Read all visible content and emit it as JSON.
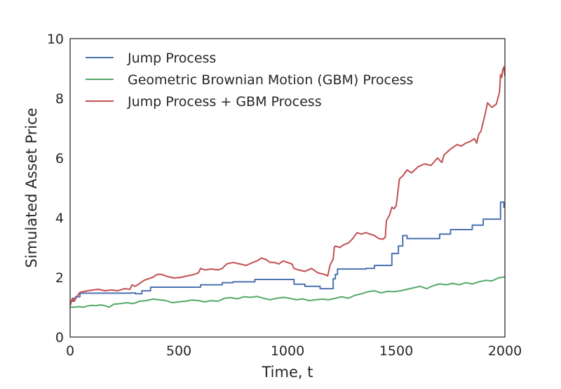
{
  "chart_data": {
    "type": "line",
    "title": "",
    "xlabel": "Time, t",
    "ylabel": "Simulated Asset Price",
    "xlim": [
      0,
      2000
    ],
    "ylim": [
      0,
      10
    ],
    "xticks": [
      "0",
      "500",
      "1000",
      "1500",
      "2000"
    ],
    "yticks": [
      "0",
      "2",
      "4",
      "6",
      "8",
      "10"
    ],
    "grid": false,
    "legend_position": "top-left",
    "series": [
      {
        "name": "Jump Process",
        "color": "#4c72b0",
        "step": true,
        "x": [
          0,
          15,
          25,
          45,
          280,
          300,
          330,
          370,
          420,
          500,
          600,
          700,
          750,
          820,
          850,
          1000,
          1030,
          1050,
          1080,
          1100,
          1120,
          1150,
          1170,
          1190,
          1210,
          1220,
          1230,
          1300,
          1330,
          1360,
          1400,
          1450,
          1480,
          1500,
          1510,
          1530,
          1550,
          1600,
          1700,
          1750,
          1780,
          1800,
          1850,
          1900,
          1950,
          1980,
          1995,
          2000
        ],
        "y": [
          1.2,
          1.3,
          1.35,
          1.47,
          1.48,
          1.45,
          1.55,
          1.67,
          1.67,
          1.67,
          1.75,
          1.82,
          1.85,
          1.85,
          1.93,
          1.93,
          1.77,
          1.77,
          1.7,
          1.7,
          1.7,
          1.62,
          1.62,
          1.62,
          1.95,
          2.1,
          2.28,
          2.28,
          2.28,
          2.3,
          2.4,
          2.4,
          2.8,
          2.8,
          3.05,
          3.4,
          3.3,
          3.3,
          3.45,
          3.6,
          3.6,
          3.6,
          3.75,
          3.95,
          3.95,
          4.52,
          4.35,
          4.35
        ]
      },
      {
        "name": "Geometric Brownian Motion (GBM) Process",
        "color": "#55a868",
        "step": false,
        "x": [
          0,
          20,
          40,
          60,
          80,
          100,
          120,
          140,
          160,
          180,
          200,
          230,
          260,
          290,
          320,
          350,
          380,
          410,
          440,
          470,
          500,
          530,
          560,
          590,
          620,
          650,
          680,
          710,
          740,
          770,
          800,
          830,
          860,
          890,
          920,
          950,
          980,
          1010,
          1040,
          1070,
          1100,
          1130,
          1160,
          1190,
          1220,
          1250,
          1280,
          1310,
          1340,
          1370,
          1400,
          1430,
          1460,
          1490,
          1520,
          1550,
          1580,
          1610,
          1640,
          1670,
          1700,
          1730,
          1760,
          1790,
          1820,
          1850,
          1880,
          1910,
          1940,
          1970,
          2000
        ],
        "y": [
          1.0,
          1.0,
          1.02,
          1.0,
          1.04,
          1.06,
          1.05,
          1.08,
          1.05,
          1.0,
          1.1,
          1.12,
          1.15,
          1.12,
          1.2,
          1.22,
          1.27,
          1.25,
          1.22,
          1.15,
          1.18,
          1.2,
          1.24,
          1.22,
          1.18,
          1.22,
          1.2,
          1.3,
          1.32,
          1.28,
          1.35,
          1.33,
          1.36,
          1.3,
          1.25,
          1.3,
          1.33,
          1.3,
          1.25,
          1.28,
          1.22,
          1.25,
          1.27,
          1.25,
          1.3,
          1.35,
          1.3,
          1.4,
          1.45,
          1.52,
          1.55,
          1.48,
          1.53,
          1.52,
          1.55,
          1.6,
          1.65,
          1.7,
          1.62,
          1.72,
          1.78,
          1.75,
          1.8,
          1.75,
          1.82,
          1.78,
          1.85,
          1.9,
          1.88,
          1.98,
          2.02
        ]
      },
      {
        "name": "Jump Process + GBM Process",
        "color": "#c44e52",
        "step": false,
        "x": [
          0,
          10,
          20,
          30,
          45,
          60,
          80,
          100,
          130,
          160,
          190,
          220,
          250,
          275,
          285,
          300,
          320,
          340,
          360,
          380,
          400,
          420,
          450,
          480,
          510,
          540,
          570,
          590,
          600,
          620,
          650,
          680,
          700,
          720,
          750,
          780,
          810,
          840,
          860,
          880,
          900,
          920,
          940,
          960,
          980,
          1000,
          1020,
          1030,
          1050,
          1080,
          1110,
          1140,
          1170,
          1185,
          1195,
          1205,
          1210,
          1215,
          1220,
          1240,
          1260,
          1280,
          1300,
          1320,
          1340,
          1360,
          1380,
          1400,
          1420,
          1440,
          1450,
          1455,
          1470,
          1480,
          1490,
          1500,
          1510,
          1515,
          1530,
          1550,
          1570,
          1600,
          1630,
          1660,
          1690,
          1710,
          1720,
          1750,
          1760,
          1780,
          1800,
          1820,
          1840,
          1860,
          1870,
          1880,
          1890,
          1900,
          1910,
          1920,
          1940,
          1960,
          1975,
          1980,
          1985,
          1990,
          1995,
          2000
        ],
        "y": [
          1.05,
          1.3,
          1.2,
          1.35,
          1.5,
          1.52,
          1.55,
          1.57,
          1.6,
          1.55,
          1.58,
          1.55,
          1.62,
          1.6,
          1.75,
          1.7,
          1.8,
          1.9,
          1.95,
          2.0,
          2.1,
          2.1,
          2.02,
          1.98,
          2.0,
          2.05,
          2.1,
          2.15,
          2.3,
          2.25,
          2.28,
          2.25,
          2.3,
          2.45,
          2.5,
          2.45,
          2.4,
          2.5,
          2.55,
          2.65,
          2.6,
          2.5,
          2.5,
          2.45,
          2.55,
          2.5,
          2.45,
          2.3,
          2.25,
          2.2,
          2.3,
          2.15,
          2.1,
          2.05,
          2.4,
          2.55,
          2.6,
          3.0,
          3.05,
          3.0,
          3.1,
          3.15,
          3.3,
          3.5,
          3.45,
          3.5,
          3.45,
          3.4,
          3.3,
          3.28,
          3.35,
          3.9,
          4.1,
          4.35,
          4.3,
          4.4,
          5.0,
          5.3,
          5.4,
          5.6,
          5.5,
          5.7,
          5.8,
          5.75,
          6.0,
          5.85,
          6.1,
          6.3,
          6.35,
          6.45,
          6.4,
          6.5,
          6.55,
          6.65,
          6.5,
          6.8,
          6.9,
          7.2,
          7.5,
          7.85,
          7.7,
          7.8,
          8.2,
          8.8,
          8.7,
          8.95,
          9.05,
          8.75
        ]
      }
    ]
  }
}
